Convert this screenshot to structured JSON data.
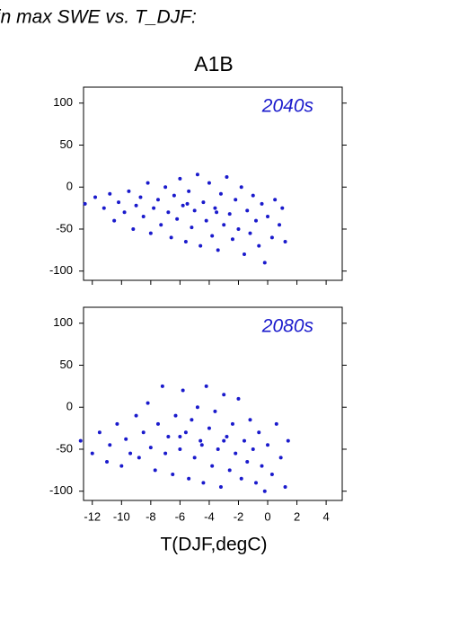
{
  "header": "in max SWE vs. T_DJF:",
  "chart_data": [
    {
      "type": "scatter",
      "title": "A1B",
      "annotation": "2040s",
      "color": "#1a1acc",
      "x": [
        -12.5,
        -11.8,
        -11.2,
        -10.8,
        -10.5,
        -10.2,
        -9.8,
        -9.5,
        -9.2,
        -9,
        -8.7,
        -8.5,
        -8.2,
        -8,
        -7.8,
        -7.5,
        -7.3,
        -7,
        -6.8,
        -6.6,
        -6.4,
        -6.2,
        -6,
        -5.8,
        -5.6,
        -5.4,
        -5.2,
        -5,
        -4.8,
        -4.6,
        -4.4,
        -4.2,
        -4,
        -3.8,
        -3.6,
        -3.4,
        -3.2,
        -3,
        -2.8,
        -2.6,
        -2.4,
        -2.2,
        -2,
        -1.8,
        -1.6,
        -1.4,
        -1.2,
        -1,
        -0.8,
        -0.6,
        -0.4,
        -0.2,
        0,
        0.3,
        0.5,
        0.8,
        1,
        1.2,
        -3.5,
        -5.5
      ],
      "y": [
        -20,
        -12,
        -25,
        -8,
        -40,
        -18,
        -30,
        -5,
        -50,
        -22,
        -12,
        -35,
        5,
        -55,
        -25,
        -15,
        -45,
        0,
        -30,
        -60,
        -10,
        -38,
        10,
        -22,
        -65,
        -5,
        -48,
        -28,
        15,
        -70,
        -18,
        -40,
        5,
        -58,
        -25,
        -75,
        -8,
        -45,
        12,
        -32,
        -62,
        -15,
        -50,
        0,
        -80,
        -28,
        -55,
        -10,
        -40,
        -70,
        -20,
        -90,
        -35,
        -60,
        -15,
        -45,
        -25,
        -65,
        -30,
        -20
      ],
      "xlim": [
        -12.6,
        5.1
      ],
      "ylim": [
        -111,
        119
      ],
      "yticks": [
        -100,
        -50,
        0,
        50,
        100
      ]
    },
    {
      "type": "scatter",
      "annotation": "2080s",
      "xlabel": "T(DJF,degC)",
      "color": "#1a1acc",
      "x": [
        -12.8,
        -12,
        -11.5,
        -11,
        -10.8,
        -10.3,
        -10,
        -9.7,
        -9.4,
        -9,
        -8.8,
        -8.5,
        -8.2,
        -8,
        -7.7,
        -7.5,
        -7.2,
        -7,
        -6.8,
        -6.5,
        -6.3,
        -6,
        -5.8,
        -5.6,
        -5.4,
        -5.2,
        -5,
        -4.8,
        -4.6,
        -4.4,
        -4.2,
        -4,
        -3.8,
        -3.6,
        -3.4,
        -3.2,
        -3,
        -2.8,
        -2.6,
        -2.4,
        -2.2,
        -2,
        -1.8,
        -1.6,
        -1.4,
        -1.2,
        -1,
        -0.8,
        -0.6,
        -0.4,
        -0.2,
        0,
        0.3,
        0.6,
        0.9,
        1.2,
        1.4,
        -4.5,
        -3,
        -6
      ],
      "y": [
        -40,
        -55,
        -30,
        -65,
        -45,
        -20,
        -70,
        -38,
        -55,
        -10,
        -60,
        -30,
        5,
        -48,
        -75,
        -20,
        25,
        -55,
        -35,
        -80,
        -10,
        -50,
        20,
        -30,
        -85,
        -15,
        -60,
        0,
        -40,
        -90,
        25,
        -25,
        -70,
        -5,
        -50,
        -95,
        15,
        -35,
        -75,
        -20,
        -55,
        10,
        -85,
        -40,
        -65,
        -15,
        -50,
        -90,
        -30,
        -70,
        -100,
        -45,
        -80,
        -20,
        -60,
        -95,
        -40,
        -45,
        -40,
        -35
      ],
      "xlim": [
        -12.6,
        5.1
      ],
      "ylim": [
        -111,
        119
      ],
      "yticks": [
        -100,
        -50,
        0,
        50,
        100
      ],
      "xticks": [
        -12,
        -10,
        -8,
        -6,
        -4,
        -2,
        0,
        2,
        4
      ]
    }
  ]
}
